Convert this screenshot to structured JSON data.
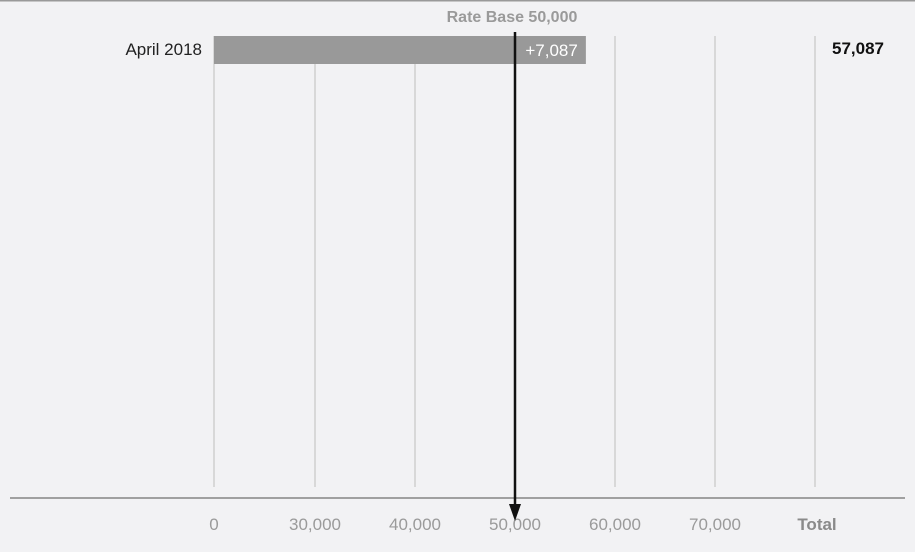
{
  "chart_data": {
    "type": "bar",
    "categories": [
      "April 2018"
    ],
    "base": 50000,
    "values": [
      57087
    ],
    "change_labels": [
      "+7,087"
    ],
    "total_labels": [
      "57,087"
    ],
    "x_ticks": [
      {
        "value": 0,
        "label": "0"
      },
      {
        "value": 30000,
        "label": "30,000"
      },
      {
        "value": 40000,
        "label": "40,000"
      },
      {
        "value": 50000,
        "label": "50,000"
      },
      {
        "value": 60000,
        "label": "60,000"
      },
      {
        "value": 70000,
        "label": "70,000"
      }
    ],
    "total_column_label": "Total",
    "reference_line": {
      "value": 50000,
      "label": "Rate Base 50,000"
    },
    "axis_break": true,
    "grid": true,
    "colors": {
      "bar": "#999999",
      "grid": "#bdbdbd",
      "axis": "#a0a0a0",
      "reference": "#111111",
      "background": "#f2f2f4"
    }
  }
}
